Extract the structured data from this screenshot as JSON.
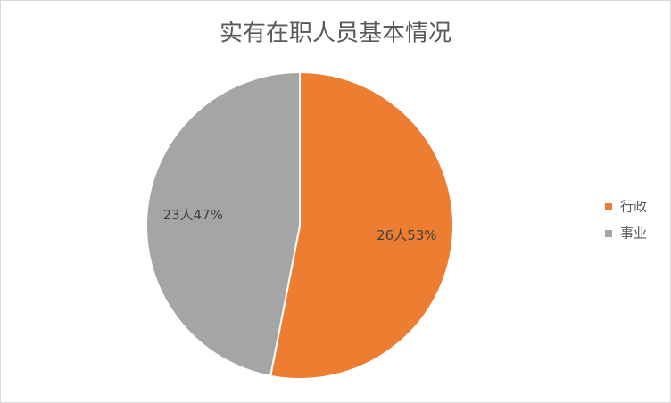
{
  "chart_data": {
    "type": "pie",
    "title": "实有在职人员基本情况",
    "categories": [
      "行政",
      "事业"
    ],
    "values": [
      26,
      23
    ],
    "value_labels": [
      "26人53%",
      "23人47%"
    ],
    "colors": [
      "#ed7d31",
      "#a5a5a5"
    ],
    "legend": "right"
  }
}
